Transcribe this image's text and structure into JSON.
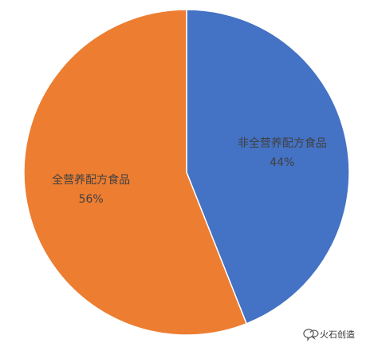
{
  "chart_data": {
    "type": "pie",
    "categories": [
      "非全营养配方食品",
      "全营养配方食品"
    ],
    "values": [
      44,
      56
    ],
    "value_labels": [
      "44%",
      "56%"
    ],
    "colors": [
      "#4472c4",
      "#ed7d31"
    ]
  },
  "watermark": "火石创造"
}
